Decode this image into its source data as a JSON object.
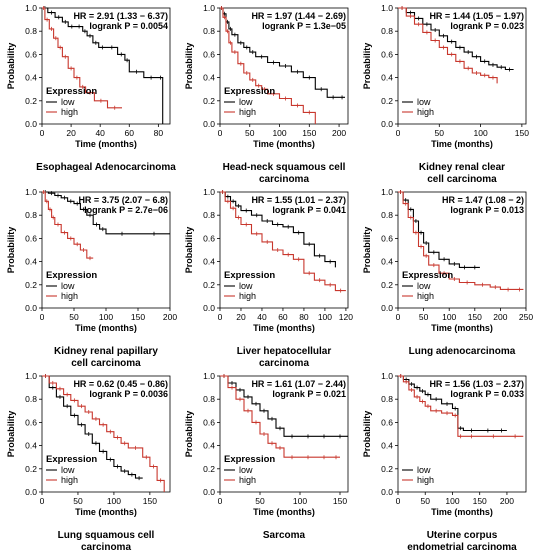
{
  "chart_data": [
    {
      "type": "line",
      "title": "Esophageal Adenocarcinoma",
      "hr_text": "HR = 2.91 (1.33 − 6.37)",
      "logrank_text": "logrank P = 0.0054",
      "xlabel": "Time (months)",
      "ylabel": "Probability",
      "xlim": [
        0,
        88
      ],
      "ylim": [
        0,
        1.0
      ],
      "xticks": [
        0,
        20,
        40,
        60,
        80
      ],
      "yticks": [
        0.0,
        0.2,
        0.4,
        0.6,
        0.8,
        1.0
      ],
      "legend": {
        "title": "Expression",
        "position": "bottom-left"
      },
      "series": [
        {
          "name": "low",
          "color": "#000000",
          "x": [
            0,
            4,
            9,
            14,
            18,
            23,
            28,
            31,
            35,
            39,
            44,
            52,
            57,
            60,
            70,
            80,
            83
          ],
          "y": [
            1.0,
            0.96,
            0.92,
            0.88,
            0.84,
            0.84,
            0.8,
            0.76,
            0.7,
            0.66,
            0.66,
            0.6,
            0.55,
            0.45,
            0.4,
            0.4,
            0.0
          ]
        },
        {
          "name": "high",
          "color": "#c8372d",
          "x": [
            0,
            2,
            5,
            8,
            11,
            14,
            18,
            22,
            26,
            30,
            36,
            45,
            55
          ],
          "y": [
            1.0,
            0.9,
            0.82,
            0.74,
            0.66,
            0.58,
            0.48,
            0.4,
            0.32,
            0.27,
            0.2,
            0.14,
            0.14
          ]
        }
      ]
    },
    {
      "type": "line",
      "title": "Head-neck squamous cell carcinoma",
      "hr_text": "HR = 1.97 (1.44 − 2.69)",
      "logrank_text": "logrank P = 1.3e−05",
      "xlabel": "Time (months)",
      "ylabel": "Probability",
      "xlim": [
        0,
        215
      ],
      "ylim": [
        0,
        1.0
      ],
      "xticks": [
        0,
        50,
        100,
        150,
        200
      ],
      "yticks": [
        0.0,
        0.2,
        0.4,
        0.6,
        0.8,
        1.0
      ],
      "legend": {
        "title": "Expression",
        "position": "bottom-left"
      },
      "series": [
        {
          "name": "low",
          "color": "#000000",
          "x": [
            0,
            5,
            10,
            15,
            20,
            30,
            40,
            50,
            60,
            80,
            100,
            120,
            140,
            160,
            180,
            200,
            210
          ],
          "y": [
            1.0,
            0.95,
            0.88,
            0.82,
            0.77,
            0.7,
            0.66,
            0.62,
            0.58,
            0.53,
            0.5,
            0.45,
            0.4,
            0.3,
            0.23,
            0.23,
            0.23
          ]
        },
        {
          "name": "high",
          "color": "#c8372d",
          "x": [
            0,
            5,
            10,
            15,
            20,
            30,
            40,
            50,
            60,
            70,
            80,
            100,
            120,
            140,
            160
          ],
          "y": [
            1.0,
            0.92,
            0.8,
            0.7,
            0.62,
            0.52,
            0.44,
            0.38,
            0.33,
            0.3,
            0.26,
            0.22,
            0.16,
            0.1,
            0.0
          ]
        }
      ]
    },
    {
      "type": "line",
      "title": "Kidney renal clear cell carcinoma",
      "hr_text": "HR = 1.44 (1.05 − 1.97)",
      "logrank_text": "logrank P = 0.023",
      "xlabel": "Time (months)",
      "ylabel": "Probability",
      "xlim": [
        0,
        155
      ],
      "ylim": [
        0,
        1.0
      ],
      "xticks": [
        0,
        50,
        100,
        150
      ],
      "yticks": [
        0.0,
        0.2,
        0.4,
        0.6,
        0.8,
        1.0
      ],
      "legend": {
        "title": "",
        "position": "bottom-left"
      },
      "series": [
        {
          "name": "low",
          "color": "#000000",
          "x": [
            0,
            10,
            20,
            30,
            40,
            50,
            60,
            70,
            80,
            90,
            100,
            110,
            120,
            130,
            140
          ],
          "y": [
            1.0,
            0.96,
            0.91,
            0.86,
            0.81,
            0.76,
            0.71,
            0.66,
            0.62,
            0.58,
            0.54,
            0.51,
            0.49,
            0.47,
            0.47
          ]
        },
        {
          "name": "high",
          "color": "#c8372d",
          "x": [
            0,
            10,
            20,
            30,
            40,
            50,
            60,
            70,
            80,
            90,
            100,
            110,
            120
          ],
          "y": [
            1.0,
            0.93,
            0.86,
            0.79,
            0.72,
            0.66,
            0.6,
            0.54,
            0.48,
            0.44,
            0.42,
            0.4,
            0.35
          ]
        }
      ]
    },
    {
      "type": "line",
      "title": "Kidney renal papillary cell carcinoma",
      "hr_text": "HR = 3.75 (2.07 − 6.8)",
      "logrank_text": "logrank P = 2.7e−06",
      "xlabel": "Time (months)",
      "ylabel": "Probability",
      "xlim": [
        0,
        200
      ],
      "ylim": [
        0,
        1.0
      ],
      "xticks": [
        0,
        50,
        100,
        150,
        200
      ],
      "yticks": [
        0.0,
        0.2,
        0.4,
        0.6,
        0.8,
        1.0
      ],
      "legend": {
        "title": "Expression",
        "position": "bottom-left"
      },
      "series": [
        {
          "name": "low",
          "color": "#000000",
          "x": [
            0,
            10,
            20,
            30,
            40,
            50,
            60,
            70,
            80,
            90,
            100,
            150,
            200
          ],
          "y": [
            1.0,
            0.99,
            0.97,
            0.95,
            0.92,
            0.9,
            0.85,
            0.8,
            0.72,
            0.68,
            0.64,
            0.64,
            0.64
          ]
        },
        {
          "name": "high",
          "color": "#c8372d",
          "x": [
            0,
            5,
            10,
            15,
            20,
            30,
            40,
            50,
            60,
            70,
            80
          ],
          "y": [
            1.0,
            0.92,
            0.85,
            0.78,
            0.72,
            0.65,
            0.6,
            0.55,
            0.5,
            0.43,
            0.43
          ]
        }
      ]
    },
    {
      "type": "line",
      "title": "Liver hepatocellular carcinoma",
      "hr_text": "HR = 1.55 (1.01 − 2.37)",
      "logrank_text": "logrank P = 0.041",
      "xlabel": "Time (months)",
      "ylabel": "Probability",
      "xlim": [
        0,
        122
      ],
      "ylim": [
        0,
        1.0
      ],
      "xticks": [
        0,
        20,
        40,
        60,
        80,
        100,
        120
      ],
      "yticks": [
        0.0,
        0.2,
        0.4,
        0.6,
        0.8,
        1.0
      ],
      "legend": {
        "title": "Expression",
        "position": "bottom-left"
      },
      "series": [
        {
          "name": "low",
          "color": "#000000",
          "x": [
            0,
            5,
            10,
            15,
            20,
            30,
            40,
            50,
            60,
            70,
            80,
            90,
            100,
            110
          ],
          "y": [
            1.0,
            0.96,
            0.92,
            0.88,
            0.84,
            0.8,
            0.75,
            0.72,
            0.7,
            0.65,
            0.55,
            0.45,
            0.4,
            0.35
          ]
        },
        {
          "name": "high",
          "color": "#c8372d",
          "x": [
            0,
            5,
            10,
            15,
            20,
            30,
            40,
            50,
            60,
            70,
            80,
            90,
            100,
            110,
            120
          ],
          "y": [
            1.0,
            0.92,
            0.86,
            0.78,
            0.72,
            0.64,
            0.57,
            0.5,
            0.46,
            0.42,
            0.3,
            0.24,
            0.2,
            0.15,
            0.15
          ]
        }
      ]
    },
    {
      "type": "line",
      "title": "Lung adenocarcinoma",
      "hr_text": "HR = 1.47 (1.08 − 2)",
      "logrank_text": "logrank P = 0.013",
      "xlabel": "Time (months)",
      "ylabel": "Probability",
      "xlim": [
        0,
        250
      ],
      "ylim": [
        0,
        1.0
      ],
      "xticks": [
        0,
        50,
        100,
        150,
        200,
        250
      ],
      "yticks": [
        0.0,
        0.2,
        0.4,
        0.6,
        0.8,
        1.0
      ],
      "legend": {
        "title": "Expression",
        "position": "bottom-left"
      },
      "series": [
        {
          "name": "low",
          "color": "#000000",
          "x": [
            0,
            10,
            20,
            30,
            40,
            50,
            60,
            80,
            100,
            120,
            140,
            160
          ],
          "y": [
            1.0,
            0.93,
            0.85,
            0.75,
            0.65,
            0.56,
            0.48,
            0.42,
            0.38,
            0.35,
            0.35,
            0.35
          ]
        },
        {
          "name": "high",
          "color": "#c8372d",
          "x": [
            0,
            10,
            20,
            30,
            40,
            50,
            60,
            80,
            100,
            120,
            150,
            180,
            200,
            230,
            245
          ],
          "y": [
            1.0,
            0.9,
            0.78,
            0.65,
            0.53,
            0.45,
            0.37,
            0.3,
            0.25,
            0.22,
            0.2,
            0.18,
            0.16,
            0.16,
            0.16
          ]
        }
      ]
    },
    {
      "type": "line",
      "title": "Lung squamous cell carcinoma",
      "hr_text": "HR = 0.62 (0.45 − 0.86)",
      "logrank_text": "logrank P = 0.0036",
      "xlabel": "Time (months)",
      "ylabel": "Probability",
      "xlim": [
        0,
        178
      ],
      "ylim": [
        0,
        1.0
      ],
      "xticks": [
        0,
        50,
        100,
        150
      ],
      "yticks": [
        0.0,
        0.2,
        0.4,
        0.6,
        0.8,
        1.0
      ],
      "legend": {
        "title": "Expression",
        "position": "bottom-left"
      },
      "series": [
        {
          "name": "low",
          "color": "#000000",
          "x": [
            0,
            10,
            20,
            30,
            40,
            50,
            60,
            70,
            80,
            90,
            100,
            110,
            120,
            130,
            140
          ],
          "y": [
            1.0,
            0.9,
            0.82,
            0.74,
            0.66,
            0.58,
            0.5,
            0.42,
            0.35,
            0.28,
            0.22,
            0.18,
            0.15,
            0.12,
            0.12
          ]
        },
        {
          "name": "high",
          "color": "#c8372d",
          "x": [
            0,
            10,
            20,
            30,
            40,
            50,
            60,
            70,
            80,
            90,
            100,
            110,
            120,
            140,
            150,
            160,
            170
          ],
          "y": [
            1.0,
            0.94,
            0.89,
            0.84,
            0.79,
            0.74,
            0.69,
            0.63,
            0.58,
            0.52,
            0.47,
            0.42,
            0.38,
            0.3,
            0.22,
            0.1,
            0.0
          ]
        }
      ]
    },
    {
      "type": "line",
      "title": "Sarcoma",
      "hr_text": "HR = 1.61 (1.07 − 2.44)",
      "logrank_text": "logrank P = 0.021",
      "xlabel": "Time (months)",
      "ylabel": "Probability",
      "xlim": [
        0,
        160
      ],
      "ylim": [
        0,
        1.0
      ],
      "xticks": [
        0,
        50,
        100,
        150
      ],
      "yticks": [
        0.0,
        0.2,
        0.4,
        0.6,
        0.8,
        1.0
      ],
      "legend": {
        "title": "Expression",
        "position": "bottom-left"
      },
      "series": [
        {
          "name": "low",
          "color": "#000000",
          "x": [
            0,
            10,
            20,
            30,
            40,
            50,
            60,
            70,
            80,
            100,
            120,
            140,
            160
          ],
          "y": [
            1.0,
            0.94,
            0.88,
            0.82,
            0.76,
            0.7,
            0.63,
            0.55,
            0.48,
            0.48,
            0.48,
            0.48,
            0.48
          ]
        },
        {
          "name": "high",
          "color": "#c8372d",
          "x": [
            0,
            10,
            20,
            30,
            40,
            50,
            60,
            70,
            80,
            100,
            120,
            140,
            150
          ],
          "y": [
            1.0,
            0.9,
            0.8,
            0.7,
            0.6,
            0.5,
            0.42,
            0.38,
            0.3,
            0.3,
            0.3,
            0.3,
            0.3
          ]
        }
      ]
    },
    {
      "type": "line",
      "title": "Uterine corpus endometrial carcinoma",
      "hr_text": "HR = 1.56 (1.03 − 2.37)",
      "logrank_text": "logrank P = 0.033",
      "xlabel": "Time (months)",
      "ylabel": "Probability",
      "xlim": [
        0,
        235
      ],
      "ylim": [
        0,
        1.0
      ],
      "xticks": [
        0,
        50,
        100,
        150,
        200
      ],
      "yticks": [
        0.0,
        0.2,
        0.4,
        0.6,
        0.8,
        1.0
      ],
      "legend": {
        "title": "",
        "position": "bottom-left"
      },
      "series": [
        {
          "name": "low",
          "color": "#000000",
          "x": [
            0,
            10,
            20,
            30,
            40,
            50,
            60,
            80,
            100,
            110,
            120,
            150,
            180,
            200
          ],
          "y": [
            1.0,
            0.97,
            0.93,
            0.9,
            0.87,
            0.84,
            0.8,
            0.76,
            0.72,
            0.55,
            0.53,
            0.53,
            0.53,
            0.53
          ]
        },
        {
          "name": "high",
          "color": "#c8372d",
          "x": [
            0,
            10,
            20,
            30,
            40,
            50,
            60,
            80,
            100,
            110,
            120,
            150,
            200,
            230
          ],
          "y": [
            1.0,
            0.95,
            0.88,
            0.82,
            0.78,
            0.74,
            0.7,
            0.68,
            0.66,
            0.48,
            0.48,
            0.48,
            0.48,
            0.48
          ]
        }
      ]
    }
  ]
}
